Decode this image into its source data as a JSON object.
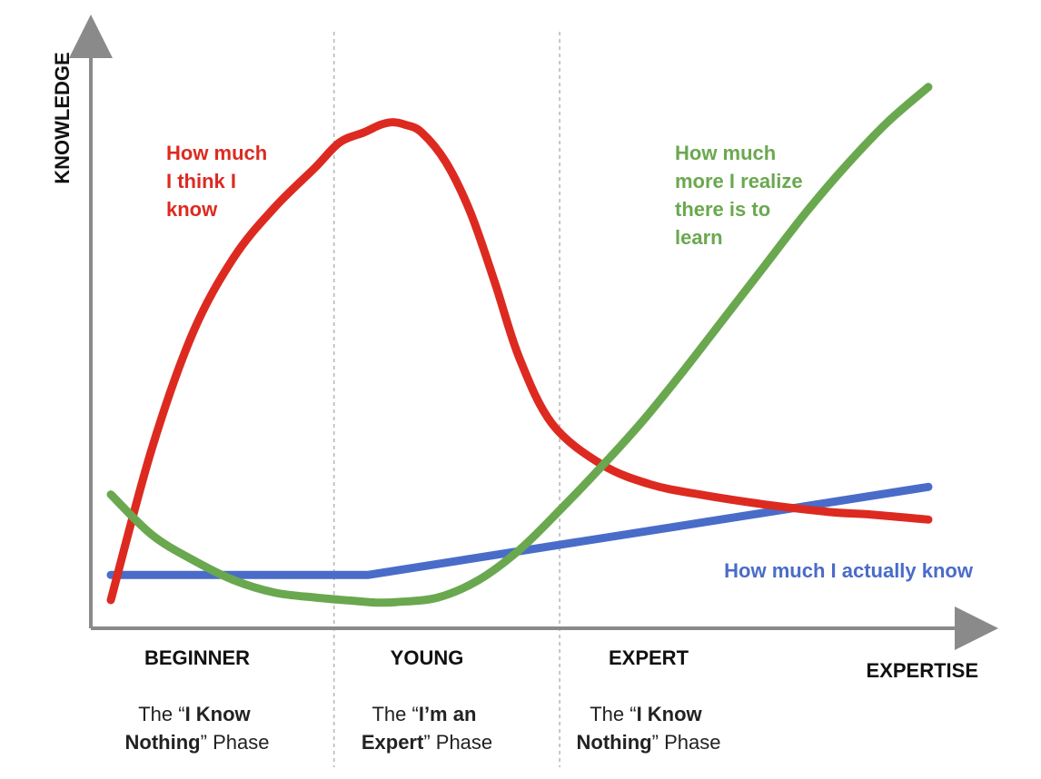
{
  "chart_data": {
    "type": "line",
    "title": "",
    "xlabel": "EXPERTISE",
    "ylabel": "KNOWLEDGE",
    "grid": false,
    "legend": "none",
    "xlim": [
      0,
      100
    ],
    "ylim": [
      0,
      100
    ],
    "phases": [
      {
        "name": "BEGINNER",
        "desc": [
          "The “",
          "I Know",
          "",
          "Nothing",
          "” Phase"
        ]
      },
      {
        "name": "YOUNG",
        "desc": [
          "The “",
          "I’m an",
          "",
          "Expert",
          "” Phase"
        ]
      },
      {
        "name": "EXPERT",
        "desc": [
          "The “",
          "I Know",
          "",
          "Nothing",
          "” Phase"
        ]
      }
    ],
    "phase_boundaries": [
      27.3,
      54.9
    ],
    "series": [
      {
        "key": "think",
        "name": "How much I think I know",
        "label_lines": [
          "How much",
          "I think I",
          "know"
        ],
        "color": "#dd2a20",
        "x": [
          0,
          5,
          10,
          15,
          20,
          25,
          28,
          31,
          33,
          34.5,
          36,
          38,
          41,
          44,
          47,
          50,
          54,
          60,
          66,
          72,
          80,
          88,
          93,
          100
        ],
        "y": [
          2,
          32,
          55,
          70,
          80,
          88,
          93,
          95,
          96.5,
          97,
          96.5,
          95,
          89,
          79,
          65,
          50,
          37,
          29,
          25,
          23,
          21,
          19.5,
          19,
          18
        ]
      },
      {
        "key": "realize",
        "name": "How much more I realize there is to learn",
        "label_lines": [
          "How much",
          "more I realize",
          "there is to",
          "learn"
        ],
        "color": "#6aa84f",
        "x": [
          0,
          5,
          10,
          15,
          20,
          25,
          30,
          32.5,
          35,
          40,
          45,
          50,
          55,
          60,
          65,
          70,
          75,
          80,
          85,
          90,
          95,
          100
        ],
        "y": [
          23,
          15,
          10,
          6,
          3.5,
          2.5,
          1.8,
          1.5,
          1.6,
          2.5,
          6,
          12,
          20,
          28.5,
          37.5,
          47.5,
          58,
          68.5,
          79,
          88.5,
          97,
          104
        ]
      },
      {
        "key": "actual",
        "name": "How much I actually know",
        "label_lines": [
          "How much I actually know"
        ],
        "color": "#4a6cc9",
        "x": [
          0,
          31.5,
          100
        ],
        "y": [
          7,
          7,
          24.5
        ]
      }
    ]
  }
}
